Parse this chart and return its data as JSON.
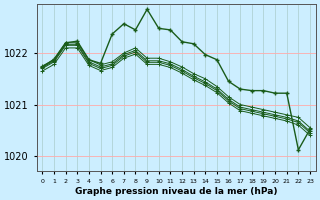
{
  "title": "Graphe pression niveau de la mer (hPa)",
  "background_color": "#cceeff",
  "grid_color_v": "#aacccc",
  "grid_color_h": "#ffaaaa",
  "line_color": "#1a5c1a",
  "x_labels": [
    "0",
    "1",
    "2",
    "3",
    "4",
    "5",
    "6",
    "7",
    "8",
    "9",
    "10",
    "11",
    "12",
    "13",
    "14",
    "15",
    "16",
    "17",
    "18",
    "19",
    "20",
    "21",
    "22",
    "23"
  ],
  "ylim": [
    1019.7,
    1022.95
  ],
  "yticks": [
    1020,
    1021,
    1022
  ],
  "series": [
    [
      1021.75,
      1021.87,
      1022.2,
      1022.2,
      1021.87,
      1021.77,
      1021.83,
      1022.0,
      1022.1,
      1021.9,
      1021.9,
      1021.83,
      1021.73,
      1021.6,
      1021.5,
      1021.35,
      1021.15,
      1021.0,
      1020.95,
      1020.9,
      1020.85,
      1020.8,
      1020.75,
      1020.55
    ],
    [
      1021.72,
      1021.85,
      1022.17,
      1022.17,
      1021.83,
      1021.73,
      1021.79,
      1021.97,
      1022.05,
      1021.85,
      1021.85,
      1021.79,
      1021.68,
      1021.55,
      1021.44,
      1021.3,
      1021.1,
      1020.95,
      1020.9,
      1020.85,
      1020.8,
      1020.75,
      1020.68,
      1020.48
    ],
    [
      1021.7,
      1021.83,
      1022.15,
      1022.15,
      1021.8,
      1021.7,
      1021.76,
      1021.94,
      1022.02,
      1021.82,
      1021.82,
      1021.76,
      1021.65,
      1021.52,
      1021.41,
      1021.27,
      1021.07,
      1020.92,
      1020.87,
      1020.82,
      1020.77,
      1020.72,
      1020.65,
      1020.45
    ],
    [
      1021.65,
      1021.78,
      1022.1,
      1022.1,
      1021.76,
      1021.66,
      1021.72,
      1021.9,
      1021.98,
      1021.78,
      1021.78,
      1021.72,
      1021.61,
      1021.48,
      1021.37,
      1021.23,
      1021.03,
      1020.88,
      1020.83,
      1020.78,
      1020.73,
      1020.68,
      1020.6,
      1020.4
    ]
  ],
  "obs_series": [
    1021.73,
    1021.88,
    1022.2,
    1022.23,
    1021.87,
    1021.8,
    1022.37,
    1022.57,
    1022.45,
    1022.85,
    1022.48,
    1022.45,
    1022.22,
    1022.18,
    1021.97,
    1021.87,
    1021.45,
    1021.3,
    1021.27,
    1021.27,
    1021.22,
    1021.22,
    1020.12,
    1020.52
  ]
}
